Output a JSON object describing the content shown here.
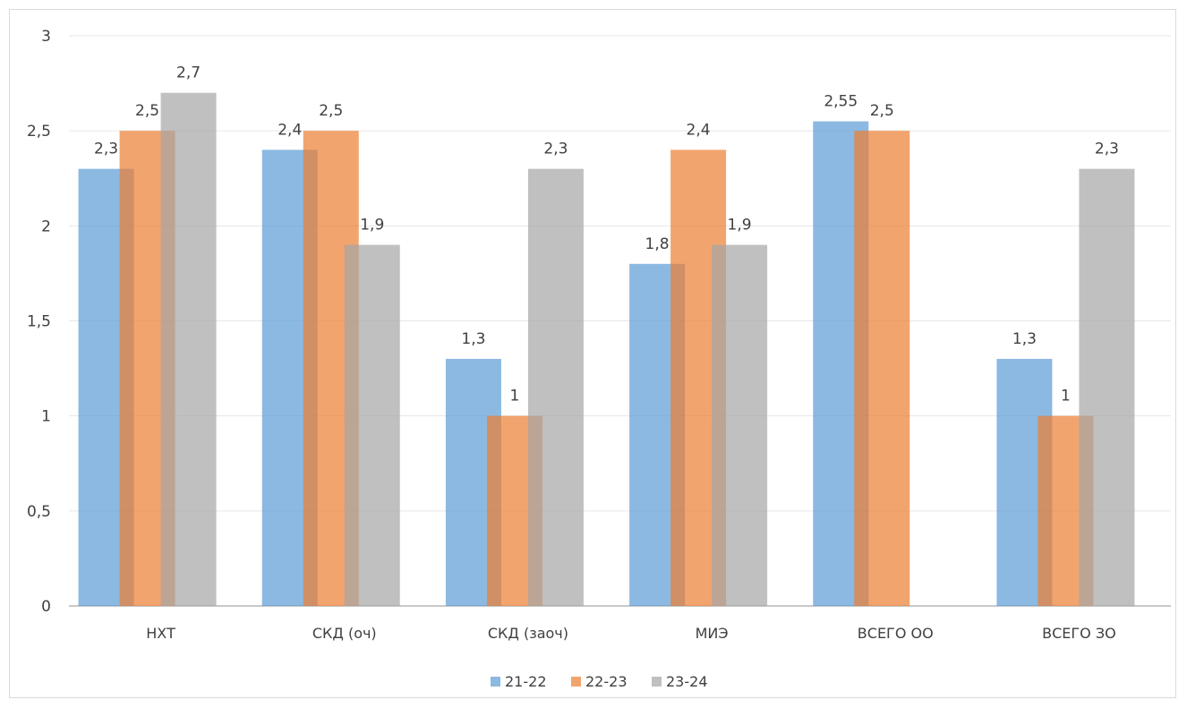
{
  "chart_data": {
    "type": "bar",
    "title": "",
    "xlabel": "",
    "ylabel": "",
    "ylim": [
      0,
      3
    ],
    "yticks": [
      "0",
      "0,5",
      "1",
      "1,5",
      "2",
      "2,5",
      "3"
    ],
    "categories": [
      "НХТ",
      "СКД (оч)",
      "СКД (заоч)",
      "МИЭ",
      "ВСЕГО ОО",
      "ВСЕГО ЗО"
    ],
    "series": [
      {
        "name": "21-22",
        "color": "#5b9bd5",
        "values": [
          2.3,
          2.4,
          1.3,
          1.8,
          2.55,
          1.3
        ],
        "labels": [
          "2,3",
          "2,4",
          "1,3",
          "1,8",
          "2,55",
          "1,3"
        ]
      },
      {
        "name": "22-23",
        "color": "#ed7d31",
        "values": [
          2.5,
          2.5,
          1,
          2.4,
          2.5,
          1
        ],
        "labels": [
          "2,5",
          "2,5",
          "1",
          "2,4",
          "2,5",
          "1"
        ]
      },
      {
        "name": "23-24",
        "color": "#a5a5a5",
        "values": [
          2.7,
          1.9,
          2.3,
          1.9,
          null,
          2.3
        ],
        "labels": [
          "2,7",
          "1,9",
          "2,3",
          "1,9",
          "",
          "2,3"
        ]
      }
    ],
    "grid": true,
    "legend": "bottom"
  }
}
